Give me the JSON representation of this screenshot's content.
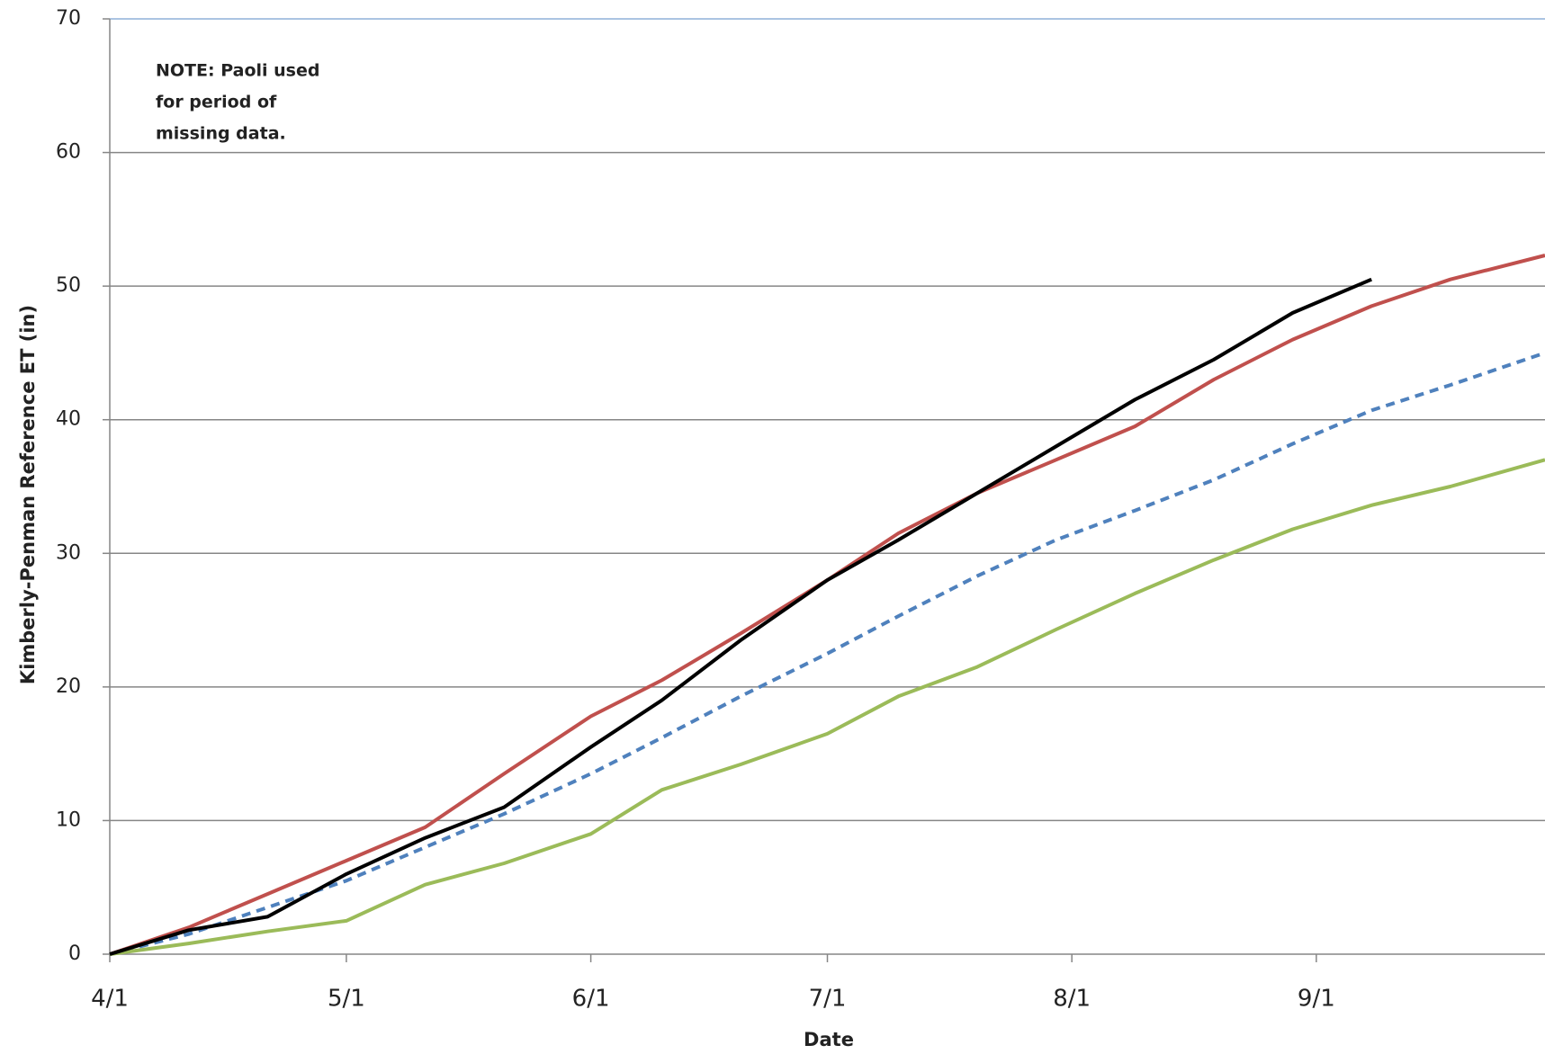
{
  "chart_data": {
    "type": "line",
    "x_label": "Date",
    "y_label": "Kimberly-Penman Reference ET (in)",
    "annotation": [
      "NOTE:  Paoli used",
      "for period of",
      "missing data."
    ],
    "x": [
      0,
      10,
      20,
      30,
      40,
      50,
      61,
      70,
      80,
      91,
      100,
      110,
      120,
      130,
      140,
      150,
      160,
      170,
      182
    ],
    "series": [
      {
        "color": "#c0504d",
        "dash": false,
        "values": [
          0,
          2,
          4.5,
          7,
          9.5,
          13.5,
          17.8,
          20.5,
          24,
          28,
          31.5,
          34.5,
          37,
          39.5,
          43,
          46,
          48.5,
          50.5,
          52.3
        ]
      },
      {
        "color": "#4f81bd",
        "dash": true,
        "values": [
          0,
          1.5,
          3.5,
          5.5,
          8,
          10.5,
          13.5,
          16.2,
          19.3,
          22.5,
          25.3,
          28.3,
          31,
          33.2,
          35.5,
          38.2,
          40.7,
          42.6,
          45
        ]
      },
      {
        "color": "#9bbb59",
        "dash": false,
        "values": [
          0,
          0.8,
          1.7,
          2.5,
          5.2,
          6.8,
          9,
          12.3,
          14.2,
          16.5,
          19.3,
          21.5,
          24.3,
          27,
          29.5,
          31.8,
          33.6,
          35,
          37
        ]
      },
      {
        "color": "#000000",
        "dash": false,
        "values": [
          0,
          1.8,
          2.8,
          6,
          8.7,
          11,
          15.5,
          19,
          23.5,
          28,
          31,
          34.5,
          38,
          41.5,
          44.5,
          48,
          50.5,
          null,
          null
        ]
      }
    ],
    "xlim": [
      0,
      182
    ],
    "xticks": [
      {
        "value": 0,
        "label": "4/1"
      },
      {
        "value": 30,
        "label": "5/1"
      },
      {
        "value": 61,
        "label": "6/1"
      },
      {
        "value": 91,
        "label": "7/1"
      },
      {
        "value": 122,
        "label": "8/1"
      },
      {
        "value": 153,
        "label": "9/1"
      }
    ],
    "ylim": [
      0,
      70
    ],
    "yticks": [
      0,
      10,
      20,
      30,
      40,
      50,
      60,
      70
    ],
    "grid": true
  }
}
